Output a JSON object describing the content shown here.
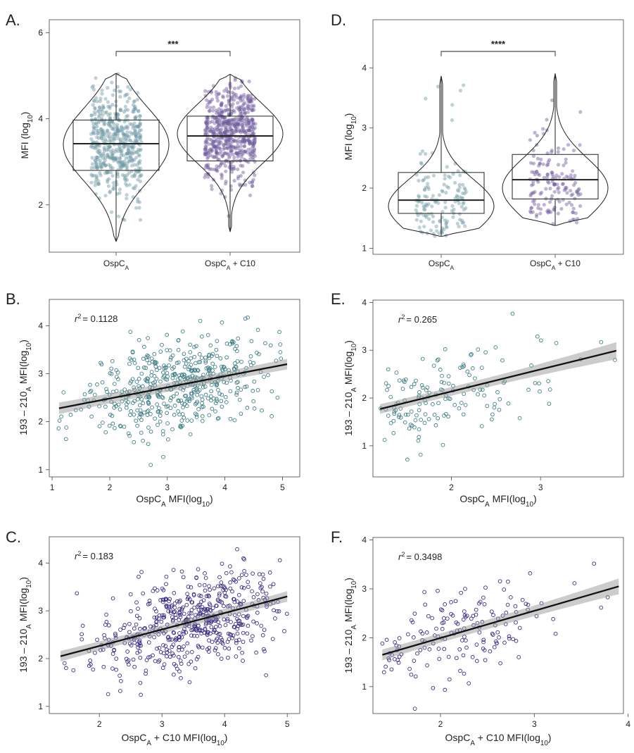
{
  "chart_data": [
    {
      "panel": "A.",
      "type": "violin-box-jitter",
      "ylabel": "MFI (log10)",
      "ylim": [
        0.9,
        6.3
      ],
      "yticks": [
        2,
        4,
        6
      ],
      "categories": [
        "OspC_A",
        "OspC_A + C10"
      ],
      "category_labels": [
        {
          "main": "OspC",
          "sub": "A",
          "rest": ""
        },
        {
          "main": "OspC",
          "sub": "A",
          "rest": " + C10"
        }
      ],
      "groups": [
        {
          "name": "OspC_A",
          "color": "#6f9aa3",
          "n": 550,
          "min": 1.15,
          "q1": 2.8,
          "median": 3.42,
          "q3": 3.97,
          "max": 5.05,
          "mode_center": 3.4,
          "spread": 0.85
        },
        {
          "name": "OspC_A + C10",
          "color": "#6e5a9c",
          "n": 650,
          "min": 1.38,
          "q1": 3.02,
          "median": 3.6,
          "q3": 4.06,
          "max": 5.03,
          "mode_center": 3.65,
          "spread": 0.7
        }
      ],
      "significance": "***"
    },
    {
      "panel": "D.",
      "type": "violin-box-jitter",
      "ylabel": "MFI (log10)",
      "ylim": [
        0.9,
        4.8
      ],
      "yticks": [
        1,
        2,
        3,
        4
      ],
      "categories": [
        "OspC_A",
        "OspC_A + C10"
      ],
      "category_labels": [
        {
          "main": "OspC",
          "sub": "A",
          "rest": ""
        },
        {
          "main": "OspC",
          "sub": "A",
          "rest": " + C10"
        }
      ],
      "groups": [
        {
          "name": "OspC_A",
          "color": "#6f9aa3",
          "n": 150,
          "min": 1.2,
          "q1": 1.58,
          "median": 1.8,
          "q3": 2.26,
          "max": 3.86,
          "mode_center": 1.7,
          "spread": 0.45
        },
        {
          "name": "OspC_A + C10",
          "color": "#6e5a9c",
          "n": 160,
          "min": 1.38,
          "q1": 1.82,
          "median": 2.14,
          "q3": 2.56,
          "max": 3.9,
          "mode_center": 2.0,
          "spread": 0.5
        }
      ],
      "significance": "****"
    },
    {
      "panel": "B.",
      "type": "scatter",
      "xlabel": {
        "main": "OspC",
        "sub": "A",
        "rest": " MFI(log",
        "sub2": "10",
        "end": ")"
      },
      "ylabel": {
        "a": "193 – 210",
        "sub": "A",
        "b": " MFI(log",
        "sub2": "10",
        "end": ")"
      },
      "xlim": [
        0.95,
        5.3
      ],
      "ylim": [
        0.85,
        4.55
      ],
      "xticks": [
        1,
        2,
        3,
        4,
        5
      ],
      "yticks": [
        1,
        2,
        3,
        4
      ],
      "r2_label": "= 0.1128",
      "n": 520,
      "color": "#3f7f86",
      "x_center": 3.2,
      "x_spread": 0.8,
      "x_range": [
        1.1,
        5.1
      ],
      "y_range": [
        1.0,
        4.45
      ],
      "fit": {
        "x0": 1.12,
        "y0": 2.28,
        "x1": 5.08,
        "y1": 3.2
      },
      "band": [
        0.1,
        0.05,
        0.09
      ]
    },
    {
      "panel": "E.",
      "type": "scatter",
      "xlabel": {
        "main": "OspC",
        "sub": "A",
        "rest": " MFI(log",
        "sub2": "10",
        "end": ")"
      },
      "ylabel": {
        "a": "193 – 210",
        "sub": "A",
        "b": " MFI(log",
        "sub2": "10",
        "end": ")"
      },
      "xlim": [
        1.12,
        3.93
      ],
      "ylim": [
        0.35,
        4.05
      ],
      "xticks": [
        2,
        3
      ],
      "yticks": [
        1,
        2,
        3,
        4
      ],
      "r2_label": "= 0.265",
      "n": 150,
      "color": "#3f7f86",
      "x_center": 1.8,
      "x_spread": 0.5,
      "x_range": [
        1.2,
        3.86
      ],
      "y_range": [
        0.5,
        3.85
      ],
      "fit": {
        "x0": 1.2,
        "y0": 1.77,
        "x1": 3.85,
        "y1": 2.99
      },
      "band": [
        0.08,
        0.04,
        0.16
      ]
    },
    {
      "panel": "C.",
      "type": "scatter",
      "xlabel": {
        "main": "OspC",
        "sub": "A",
        "rest": " + C10 MFI(log",
        "sub2": "10",
        "end": ")"
      },
      "ylabel": {
        "a": "193 – 210",
        "sub": "A",
        "b": " MFI(log",
        "sub2": "10",
        "end": ")"
      },
      "xlim": [
        1.2,
        5.2
      ],
      "ylim": [
        0.85,
        4.55
      ],
      "xticks": [
        2,
        3,
        4,
        5
      ],
      "yticks": [
        1,
        2,
        3,
        4
      ],
      "r2_label": "= 0.183",
      "n": 560,
      "color": "#3a2a84",
      "x_center": 3.5,
      "x_spread": 0.75,
      "x_range": [
        1.38,
        5.0
      ],
      "y_range": [
        1.0,
        4.4
      ],
      "fit": {
        "x0": 1.38,
        "y0": 2.05,
        "x1": 5.0,
        "y1": 3.3
      },
      "band": [
        0.09,
        0.04,
        0.09
      ]
    },
    {
      "panel": "F.",
      "type": "scatter",
      "xlabel": {
        "main": "OspC",
        "sub": "A",
        "rest": " + C10 MFI(log",
        "sub2": "10",
        "end": ")"
      },
      "ylabel": {
        "a": "193 – 210",
        "sub": "A",
        "b": " MFI(log",
        "sub2": "10",
        "end": ")"
      },
      "xlim": [
        1.28,
        3.95
      ],
      "ylim": [
        0.45,
        4.05
      ],
      "xticks": [
        2,
        3,
        4
      ],
      "yticks": [
        1,
        2,
        3,
        4
      ],
      "r2_label": "= 0.3498",
      "n": 160,
      "color": "#3a2a84",
      "x_center": 2.1,
      "x_spread": 0.5,
      "x_range": [
        1.38,
        3.9
      ],
      "y_range": [
        0.55,
        3.85
      ],
      "fit": {
        "x0": 1.38,
        "y0": 1.65,
        "x1": 3.9,
        "y1": 3.05
      },
      "band": [
        0.09,
        0.04,
        0.14
      ]
    }
  ]
}
